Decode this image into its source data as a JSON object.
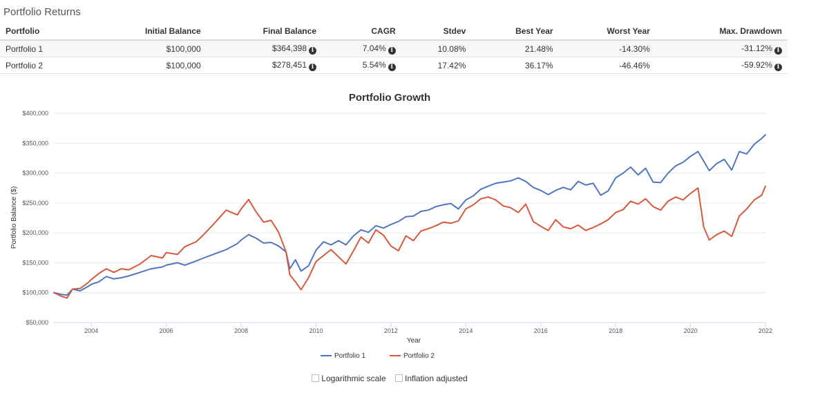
{
  "section_title": "Portfolio Returns",
  "table": {
    "headers": [
      "Portfolio",
      "Initial Balance",
      "Final Balance",
      "CAGR",
      "Stdev",
      "Best Year",
      "Worst Year",
      "Max. Drawdown"
    ],
    "rows": [
      {
        "portfolio": "Portfolio 1",
        "initial": "$100,000",
        "final": "$364,398",
        "cagr": "7.04%",
        "stdev": "10.08%",
        "best": "21.48%",
        "worst": "-14.30%",
        "drawdown": "-31.12%"
      },
      {
        "portfolio": "Portfolio 2",
        "initial": "$100,000",
        "final": "$278,451",
        "cagr": "5.54%",
        "stdev": "17.42%",
        "best": "36.17%",
        "worst": "-46.46%",
        "drawdown": "-59.92%"
      }
    ],
    "info_icon": "info-circle-icon"
  },
  "chart_data": {
    "type": "line",
    "title": "Portfolio Growth",
    "xlabel": "Year",
    "ylabel": "Portfolio Balance ($)",
    "xlim": [
      2003.0,
      2022.0
    ],
    "ylim": [
      50000,
      400000
    ],
    "x_ticks": [
      2004,
      2006,
      2008,
      2010,
      2012,
      2014,
      2016,
      2018,
      2020,
      2022
    ],
    "y_ticks": [
      50000,
      100000,
      150000,
      200000,
      250000,
      300000,
      350000,
      400000
    ],
    "y_tick_labels": [
      "$50,000",
      "$100,000",
      "$150,000",
      "$200,000",
      "$250,000",
      "$300,000",
      "$350,000",
      "$400,000"
    ],
    "grid": true,
    "legend_position": "bottom-center",
    "series": [
      {
        "name": "Portfolio 1",
        "color": "#4f75c2",
        "points": [
          [
            2003.0,
            100000
          ],
          [
            2003.2,
            97000
          ],
          [
            2003.35,
            96000
          ],
          [
            2003.5,
            106000
          ],
          [
            2003.7,
            103000
          ],
          [
            2003.9,
            110000
          ],
          [
            2004.0,
            114000
          ],
          [
            2004.2,
            118000
          ],
          [
            2004.4,
            127000
          ],
          [
            2004.6,
            123000
          ],
          [
            2004.8,
            125000
          ],
          [
            2005.0,
            128000
          ],
          [
            2005.3,
            134000
          ],
          [
            2005.6,
            140000
          ],
          [
            2005.9,
            143000
          ],
          [
            2006.0,
            146000
          ],
          [
            2006.3,
            150000
          ],
          [
            2006.5,
            146000
          ],
          [
            2006.8,
            153000
          ],
          [
            2007.0,
            158000
          ],
          [
            2007.3,
            165000
          ],
          [
            2007.6,
            172000
          ],
          [
            2007.9,
            182000
          ],
          [
            2008.0,
            188000
          ],
          [
            2008.2,
            197000
          ],
          [
            2008.4,
            191000
          ],
          [
            2008.6,
            183000
          ],
          [
            2008.8,
            184000
          ],
          [
            2009.0,
            178000
          ],
          [
            2009.2,
            168000
          ],
          [
            2009.3,
            140000
          ],
          [
            2009.45,
            155000
          ],
          [
            2009.6,
            136000
          ],
          [
            2009.8,
            145000
          ],
          [
            2010.0,
            171000
          ],
          [
            2010.2,
            185000
          ],
          [
            2010.4,
            180000
          ],
          [
            2010.6,
            187000
          ],
          [
            2010.8,
            180000
          ],
          [
            2011.0,
            195000
          ],
          [
            2011.2,
            205000
          ],
          [
            2011.4,
            201000
          ],
          [
            2011.6,
            212000
          ],
          [
            2011.8,
            208000
          ],
          [
            2012.0,
            214000
          ],
          [
            2012.2,
            219000
          ],
          [
            2012.4,
            227000
          ],
          [
            2012.6,
            228000
          ],
          [
            2012.8,
            236000
          ],
          [
            2013.0,
            238000
          ],
          [
            2013.2,
            244000
          ],
          [
            2013.4,
            247000
          ],
          [
            2013.6,
            249000
          ],
          [
            2013.8,
            240000
          ],
          [
            2014.0,
            255000
          ],
          [
            2014.2,
            262000
          ],
          [
            2014.4,
            273000
          ],
          [
            2014.6,
            278000
          ],
          [
            2014.8,
            283000
          ],
          [
            2015.0,
            285000
          ],
          [
            2015.2,
            287000
          ],
          [
            2015.4,
            292000
          ],
          [
            2015.6,
            286000
          ],
          [
            2015.8,
            276000
          ],
          [
            2016.0,
            271000
          ],
          [
            2016.2,
            264000
          ],
          [
            2016.4,
            271000
          ],
          [
            2016.6,
            276000
          ],
          [
            2016.8,
            272000
          ],
          [
            2017.0,
            286000
          ],
          [
            2017.2,
            280000
          ],
          [
            2017.4,
            283000
          ],
          [
            2017.6,
            263000
          ],
          [
            2017.8,
            270000
          ],
          [
            2018.0,
            292000
          ],
          [
            2018.2,
            300000
          ],
          [
            2018.4,
            310000
          ],
          [
            2018.6,
            297000
          ],
          [
            2018.8,
            308000
          ],
          [
            2019.0,
            285000
          ],
          [
            2019.2,
            284000
          ],
          [
            2019.4,
            300000
          ],
          [
            2019.6,
            312000
          ],
          [
            2019.8,
            318000
          ],
          [
            2020.0,
            328000
          ],
          [
            2020.2,
            336000
          ],
          [
            2020.35,
            320000
          ],
          [
            2020.5,
            304000
          ],
          [
            2020.7,
            316000
          ],
          [
            2020.9,
            323000
          ],
          [
            2021.1,
            305000
          ],
          [
            2021.3,
            336000
          ],
          [
            2021.5,
            332000
          ],
          [
            2021.7,
            348000
          ],
          [
            2021.9,
            358000
          ],
          [
            2022.0,
            364000
          ]
        ]
      },
      {
        "name": "Portfolio 2",
        "color": "#d9573b",
        "points": [
          [
            2003.0,
            100000
          ],
          [
            2003.2,
            94000
          ],
          [
            2003.35,
            91000
          ],
          [
            2003.5,
            106000
          ],
          [
            2003.7,
            107000
          ],
          [
            2003.9,
            116000
          ],
          [
            2004.0,
            122000
          ],
          [
            2004.2,
            132000
          ],
          [
            2004.4,
            140000
          ],
          [
            2004.6,
            134000
          ],
          [
            2004.8,
            140000
          ],
          [
            2005.0,
            138000
          ],
          [
            2005.3,
            148000
          ],
          [
            2005.6,
            162000
          ],
          [
            2005.9,
            158000
          ],
          [
            2006.0,
            167000
          ],
          [
            2006.3,
            164000
          ],
          [
            2006.5,
            177000
          ],
          [
            2006.8,
            185000
          ],
          [
            2007.0,
            197000
          ],
          [
            2007.3,
            217000
          ],
          [
            2007.6,
            238000
          ],
          [
            2007.9,
            230000
          ],
          [
            2008.0,
            240000
          ],
          [
            2008.2,
            256000
          ],
          [
            2008.4,
            235000
          ],
          [
            2008.6,
            218000
          ],
          [
            2008.8,
            221000
          ],
          [
            2009.0,
            201000
          ],
          [
            2009.2,
            168000
          ],
          [
            2009.3,
            130000
          ],
          [
            2009.45,
            118000
          ],
          [
            2009.6,
            105000
          ],
          [
            2009.8,
            125000
          ],
          [
            2010.0,
            152000
          ],
          [
            2010.2,
            162000
          ],
          [
            2010.4,
            172000
          ],
          [
            2010.6,
            160000
          ],
          [
            2010.8,
            148000
          ],
          [
            2011.0,
            170000
          ],
          [
            2011.2,
            193000
          ],
          [
            2011.4,
            183000
          ],
          [
            2011.6,
            205000
          ],
          [
            2011.8,
            196000
          ],
          [
            2012.0,
            178000
          ],
          [
            2012.2,
            170000
          ],
          [
            2012.4,
            195000
          ],
          [
            2012.6,
            187000
          ],
          [
            2012.8,
            203000
          ],
          [
            2013.0,
            207000
          ],
          [
            2013.2,
            212000
          ],
          [
            2013.4,
            218000
          ],
          [
            2013.6,
            216000
          ],
          [
            2013.8,
            220000
          ],
          [
            2014.0,
            240000
          ],
          [
            2014.2,
            247000
          ],
          [
            2014.4,
            257000
          ],
          [
            2014.6,
            260000
          ],
          [
            2014.8,
            255000
          ],
          [
            2015.0,
            245000
          ],
          [
            2015.2,
            242000
          ],
          [
            2015.4,
            234000
          ],
          [
            2015.6,
            248000
          ],
          [
            2015.8,
            219000
          ],
          [
            2016.0,
            211000
          ],
          [
            2016.2,
            204000
          ],
          [
            2016.4,
            222000
          ],
          [
            2016.6,
            210000
          ],
          [
            2016.8,
            207000
          ],
          [
            2017.0,
            213000
          ],
          [
            2017.2,
            204000
          ],
          [
            2017.4,
            209000
          ],
          [
            2017.6,
            215000
          ],
          [
            2017.8,
            222000
          ],
          [
            2018.0,
            234000
          ],
          [
            2018.2,
            239000
          ],
          [
            2018.4,
            253000
          ],
          [
            2018.6,
            248000
          ],
          [
            2018.8,
            257000
          ],
          [
            2019.0,
            244000
          ],
          [
            2019.2,
            238000
          ],
          [
            2019.4,
            253000
          ],
          [
            2019.6,
            260000
          ],
          [
            2019.8,
            255000
          ],
          [
            2020.0,
            266000
          ],
          [
            2020.2,
            275000
          ],
          [
            2020.35,
            210000
          ],
          [
            2020.5,
            188000
          ],
          [
            2020.7,
            197000
          ],
          [
            2020.9,
            203000
          ],
          [
            2021.1,
            194000
          ],
          [
            2021.3,
            228000
          ],
          [
            2021.5,
            240000
          ],
          [
            2021.7,
            255000
          ],
          [
            2021.9,
            263000
          ],
          [
            2022.0,
            278000
          ]
        ]
      }
    ]
  },
  "options": {
    "log_scale_label": "Logarithmic scale",
    "log_scale_checked": false,
    "inflation_label": "Inflation adjusted",
    "inflation_checked": false
  }
}
